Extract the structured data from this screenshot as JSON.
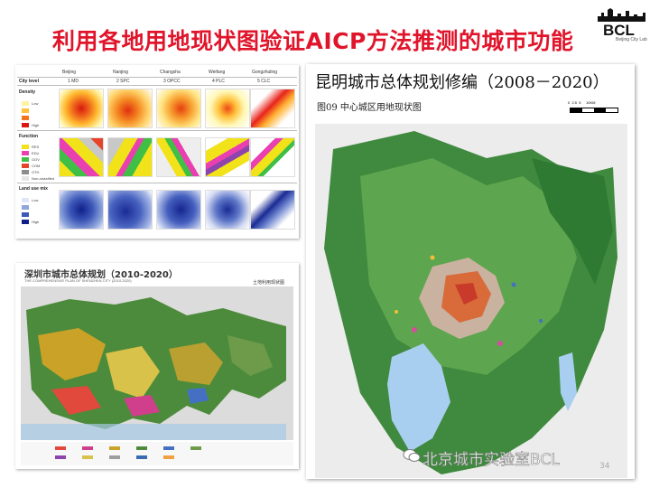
{
  "slide": {
    "title": "利用各地用地现状图验证AICP方法推测的城市功能",
    "page_number": "34"
  },
  "logo": {
    "brand": "BCL",
    "sub": "Beijing City Lab"
  },
  "comparison": {
    "header_label": "City level",
    "cities": [
      "Beijing",
      "Nanjing",
      "Changsha",
      "Weifang",
      "Gongzhuling"
    ],
    "levels": [
      "1 MD",
      "2 SPC",
      "3 OPCC",
      "4 PLC",
      "5 CLC"
    ],
    "sections": [
      {
        "name": "Density",
        "legend": [
          "Low",
          "",
          "",
          "High"
        ]
      },
      {
        "name": "Function",
        "legend": [
          "RES",
          "EDU",
          "GOV",
          "COM",
          "OTH",
          "Non-classified"
        ]
      },
      {
        "name": "Land use mix",
        "legend": [
          "Low",
          "",
          "",
          "High"
        ]
      }
    ]
  },
  "shenzhen": {
    "title": "深圳市城市总体规划（2010-2020）",
    "subtitle": "THE COMPREHENSIVE PLAN OF SHENZHEN CITY (2010-2020)",
    "map_label": "土地利用现状图"
  },
  "kunming": {
    "title": "昆明城市总体规划修编（2008－2020）",
    "subtitle": "图09 中心城区用地现状图",
    "scale_labels": [
      "0",
      "2.5",
      "5",
      "10KM"
    ]
  },
  "watermark": {
    "text": "北京城市实验室BCL"
  },
  "colors": {
    "title": "#e0152b",
    "accent": "#2a6db5"
  }
}
